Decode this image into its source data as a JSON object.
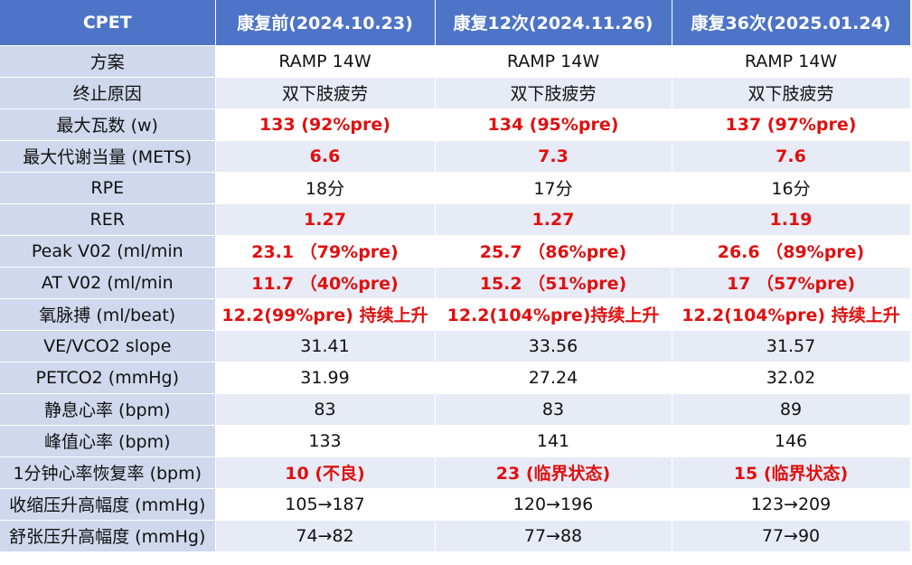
{
  "header": [
    "CPET",
    "康复前(2024.10.23)",
    "康复12次(2024.11.26)",
    "康复36次(2025.01.24)"
  ],
  "rows": [
    {
      "label": "方案",
      "values": [
        "RAMP 14W",
        "RAMP 14W",
        "RAMP 14W"
      ],
      "highlight": false
    },
    {
      "label": "终止原因",
      "values": [
        "双下肢疲劳",
        "双下肢疲劳",
        "双下肢疲劳"
      ],
      "highlight": false
    },
    {
      "label": "最大瓦数 (w)",
      "values": [
        "133 (92%pre)",
        "134 (95%pre)",
        "137 (97%pre)"
      ],
      "highlight": true
    },
    {
      "label": "最大代谢当量 (METS)",
      "values": [
        "6.6",
        "7.3",
        "7.6"
      ],
      "highlight": true
    },
    {
      "label": "RPE",
      "values": [
        "18分",
        "17分",
        "16分"
      ],
      "highlight": false
    },
    {
      "label": "RER",
      "values": [
        "1.27",
        "1.27",
        "1.19"
      ],
      "highlight": true
    },
    {
      "label": "Peak V02 (ml/min",
      "values": [
        "23.1 （79%pre)",
        "25.7 （86%pre)",
        "26.6 （89%pre)"
      ],
      "highlight": true
    },
    {
      "label": "AT V02 (ml/min",
      "values": [
        "11.7 （40%pre)",
        "15.2 （51%pre)",
        "17 （57%pre)"
      ],
      "highlight": true
    },
    {
      "label": "氧脉搏 (ml/beat)",
      "values": [
        "12.2(99%pre) 持续上升",
        "12.2(104%pre)持续上升",
        "12.2(104%pre) 持续上升"
      ],
      "highlight": true
    },
    {
      "label": "VE/VCO2 slope",
      "values": [
        "31.41",
        "33.56",
        "31.57"
      ],
      "highlight": false
    },
    {
      "label": "PETCO2 (mmHg)",
      "values": [
        "31.99",
        "27.24",
        "32.02"
      ],
      "highlight": false
    },
    {
      "label": "静息心率 (bpm)",
      "values": [
        "83",
        "83",
        "89"
      ],
      "highlight": false
    },
    {
      "label": "峰值心率 (bpm)",
      "values": [
        "133",
        "141",
        "146"
      ],
      "highlight": false
    },
    {
      "label": "1分钟心率恢复率 (bpm)",
      "values": [
        "10 (不良)",
        "23 (临界状态)",
        "15 (临界状态)"
      ],
      "highlight": true
    },
    {
      "label": "收缩压升高幅度 (mmHg)",
      "values": [
        "105→187",
        "120→196",
        "123→209"
      ],
      "highlight": false
    },
    {
      "label": "舒张压升高幅度 (mmHg)",
      "values": [
        "74→82",
        "77→88",
        "77→90"
      ],
      "highlight": false
    }
  ],
  "colors": {
    "header_bg": "#4d74c6",
    "label_bg": "#cfd8ec",
    "stripe_bg": "#e7ebf6",
    "highlight_text": "#e01010"
  }
}
